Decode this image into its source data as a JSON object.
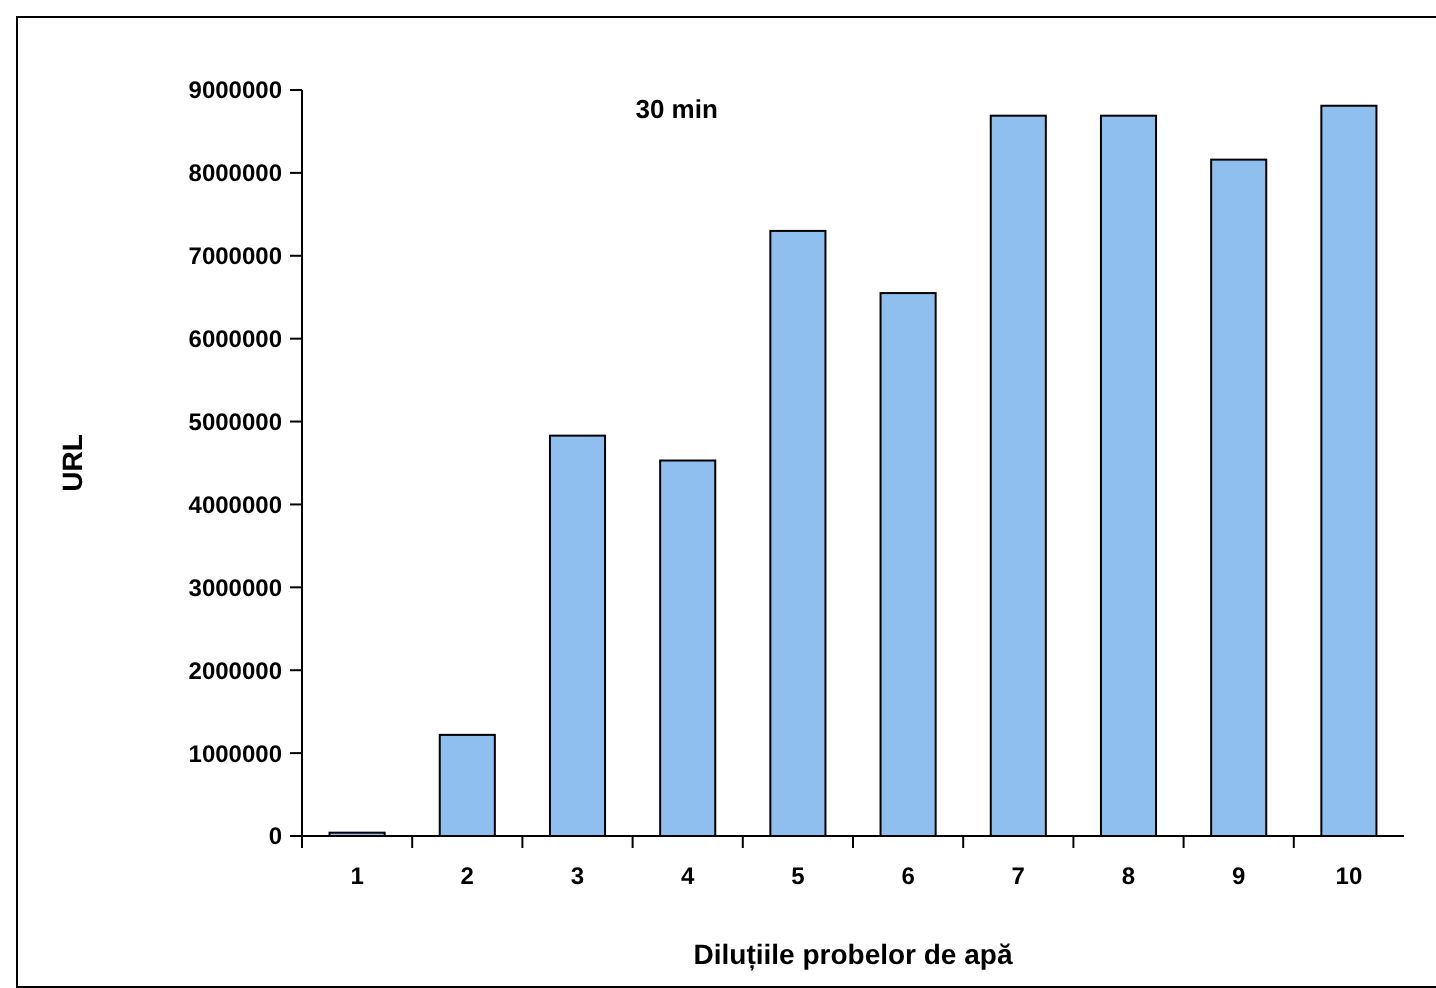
{
  "chart_data": {
    "type": "bar",
    "title": "30 min",
    "xlabel": "Diluțiile probelor de apă",
    "ylabel": "URL",
    "categories": [
      "1",
      "2",
      "3",
      "4",
      "5",
      "6",
      "7",
      "8",
      "9",
      "10"
    ],
    "values": [
      40000,
      1220000,
      4830000,
      4530000,
      7300000,
      6550000,
      8690000,
      8690000,
      8160000,
      8810000
    ],
    "color": "#8fbfee",
    "ylim": [
      0,
      9000000
    ],
    "yticks": [
      0,
      1000000,
      2000000,
      3000000,
      4000000,
      5000000,
      6000000,
      7000000,
      8000000,
      9000000
    ],
    "grid": false
  }
}
